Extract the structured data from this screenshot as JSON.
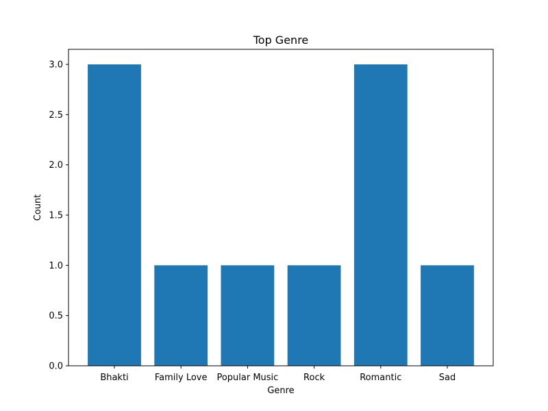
{
  "chart_data": {
    "type": "bar",
    "title": "Top Genre",
    "xlabel": "Genre",
    "ylabel": "Count",
    "categories": [
      "Bhakti",
      "Family Love",
      "Popular Music",
      "Rock",
      "Romantic",
      "Sad"
    ],
    "values": [
      3,
      1,
      1,
      1,
      3,
      1
    ],
    "ylim": [
      0,
      3.15
    ],
    "yticks": [
      "0.0",
      "0.5",
      "1.0",
      "1.5",
      "2.0",
      "2.5",
      "3.0"
    ],
    "bar_color": "#1f77b4",
    "grid": false,
    "legend": "none"
  }
}
